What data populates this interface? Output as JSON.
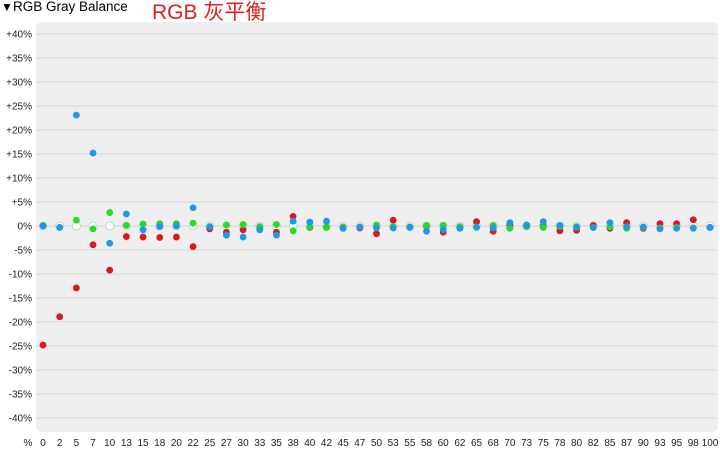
{
  "header": {
    "caret_icon": "triangle-down-icon",
    "panel_title": "RGB Gray Balance",
    "overlay_title": "RGB 灰平衡"
  },
  "chart_data": {
    "type": "scatter",
    "title": "",
    "ylabel": "",
    "xlabel": "",
    "x_unit_label": "%",
    "x_ticks": [
      "0",
      "2",
      "5",
      "7",
      "10",
      "13",
      "15",
      "18",
      "20",
      "22",
      "25",
      "27",
      "30",
      "33",
      "35",
      "38",
      "40",
      "42",
      "45",
      "47",
      "50",
      "53",
      "55",
      "58",
      "60",
      "62",
      "65",
      "68",
      "70",
      "73",
      "75",
      "78",
      "80",
      "82",
      "85",
      "87",
      "90",
      "93",
      "95",
      "98",
      "100"
    ],
    "y_ticks": [
      "+40%",
      "+35%",
      "+30%",
      "+25%",
      "+20%",
      "+15%",
      "+10%",
      "+5%",
      "0%",
      "-5%",
      "-10%",
      "-15%",
      "-20%",
      "-25%",
      "-30%",
      "-35%",
      "-40%"
    ],
    "ylim": [
      -40,
      40
    ],
    "grid": true,
    "colors": {
      "red": "#e3141c",
      "green": "#22dd22",
      "blue": "#1a9ae8",
      "neutral": "#ffffff",
      "plot_bg": "#efefef",
      "grid": "#d4d4d4"
    },
    "series": [
      {
        "key": "red",
        "values": [
          -24.8,
          -18.9,
          -12.9,
          -3.9,
          -9.2,
          -2.2,
          -2.3,
          -2.4,
          -2.3,
          -4.3,
          -0.6,
          -1.3,
          -0.8,
          -0.2,
          -1.3,
          2.0,
          -0.3,
          -0.2,
          -0.2,
          -0.4,
          -1.6,
          1.2,
          -0.2,
          0.0,
          -1.3,
          -0.2,
          0.9,
          -1.1,
          0.2,
          0.0,
          0.0,
          -1.0,
          -0.9,
          0.1,
          -0.5,
          0.7,
          -0.5,
          0.5,
          0.5,
          1.3,
          -0.3
        ]
      },
      {
        "key": "green",
        "values": [
          0.1,
          -0.3,
          1.2,
          -0.6,
          2.8,
          0.1,
          0.4,
          0.5,
          0.5,
          0.6,
          -0.1,
          0.2,
          0.3,
          -0.1,
          0.3,
          -1.0,
          -0.2,
          -0.3,
          -0.2,
          -0.2,
          0.2,
          -0.1,
          -0.2,
          0.1,
          0.1,
          -0.1,
          -0.3,
          0.1,
          -0.5,
          -0.1,
          -0.3,
          -0.1,
          -0.1,
          -0.3,
          -0.2,
          -0.5,
          -0.3,
          -0.4,
          -0.3,
          -0.5,
          -0.3
        ]
      },
      {
        "key": "blue",
        "values": [
          0.0,
          -0.3,
          23.1,
          15.2,
          -3.6,
          2.5,
          -0.8,
          -0.1,
          0.0,
          3.8,
          -0.2,
          -1.9,
          -2.3,
          -0.8,
          -1.9,
          1.0,
          0.8,
          1.0,
          -0.5,
          -0.2,
          -0.4,
          -0.4,
          -0.3,
          -1.1,
          -0.8,
          -0.5,
          -0.2,
          -0.4,
          0.7,
          0.2,
          0.9,
          0.1,
          -0.3,
          -0.3,
          0.7,
          -0.1,
          -0.2,
          -0.6,
          -0.5,
          -0.4,
          -0.3
        ]
      }
    ]
  }
}
